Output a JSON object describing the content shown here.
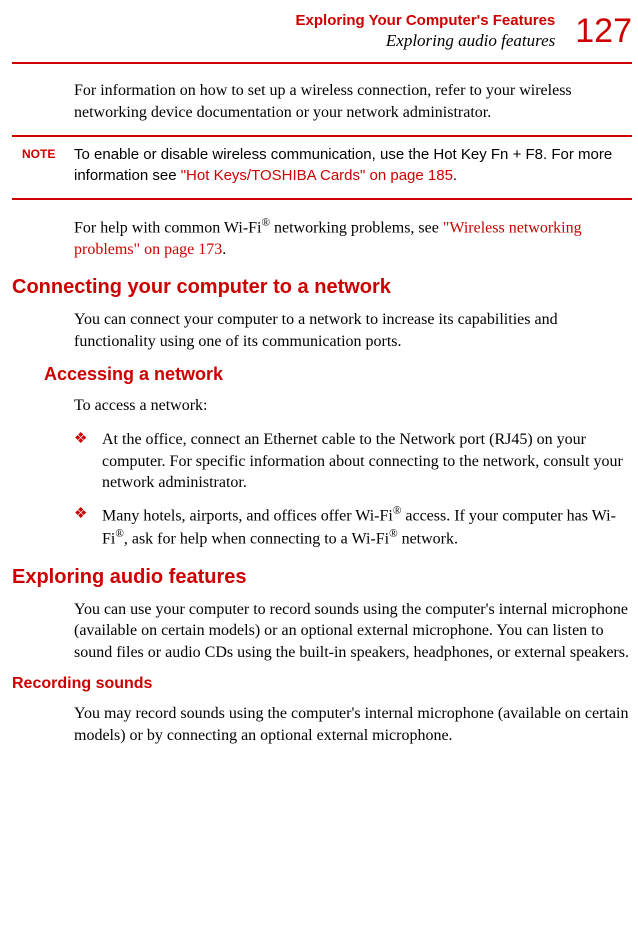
{
  "header": {
    "chapter": "Exploring Your Computer's Features",
    "section": "Exploring audio features",
    "page": "127"
  },
  "intro_p1": "For information on how to set up a wireless connection, refer to your wireless networking device documentation or your network administrator.",
  "note": {
    "label": "NOTE",
    "text_pre": "To enable or disable wireless communication, use the Hot Key ",
    "key": "Fn + F8",
    "text_mid": ". For more information see ",
    "link": "\"Hot Keys/TOSHIBA Cards\" on page 185",
    "text_post": "."
  },
  "wifi_help": {
    "pre": "For help with common Wi-Fi",
    "mid": " networking problems, see ",
    "link": "\"Wireless networking problems\" on page 173",
    "post": "."
  },
  "connect": {
    "heading": "Connecting your computer to a network",
    "p1": "You can connect your computer to a network to increase its capabilities and functionality using one of its communication ports."
  },
  "access": {
    "heading": "Accessing a network",
    "intro": "To access a network:",
    "items": [
      {
        "text": "At the office, connect an Ethernet cable to the Network port (RJ45) on your computer. For specific information about connecting to the network, consult your network administrator."
      },
      {
        "pre": "Many hotels, airports, and offices offer Wi-Fi",
        "mid1": " access. If your computer has Wi-Fi",
        "mid2": ", ask for help when connecting to a Wi-Fi",
        "post": " network."
      }
    ]
  },
  "audio": {
    "heading": "Exploring audio features",
    "p1": "You can use your computer to record sounds using the computer's internal microphone (available on certain models) or an optional external microphone. You can listen to sound files or audio CDs using the built-in speakers, headphones, or external speakers."
  },
  "recording": {
    "heading": "Recording sounds",
    "p1": "You may record sounds using the computer's internal microphone (available on certain models) or by connecting an optional external microphone."
  }
}
